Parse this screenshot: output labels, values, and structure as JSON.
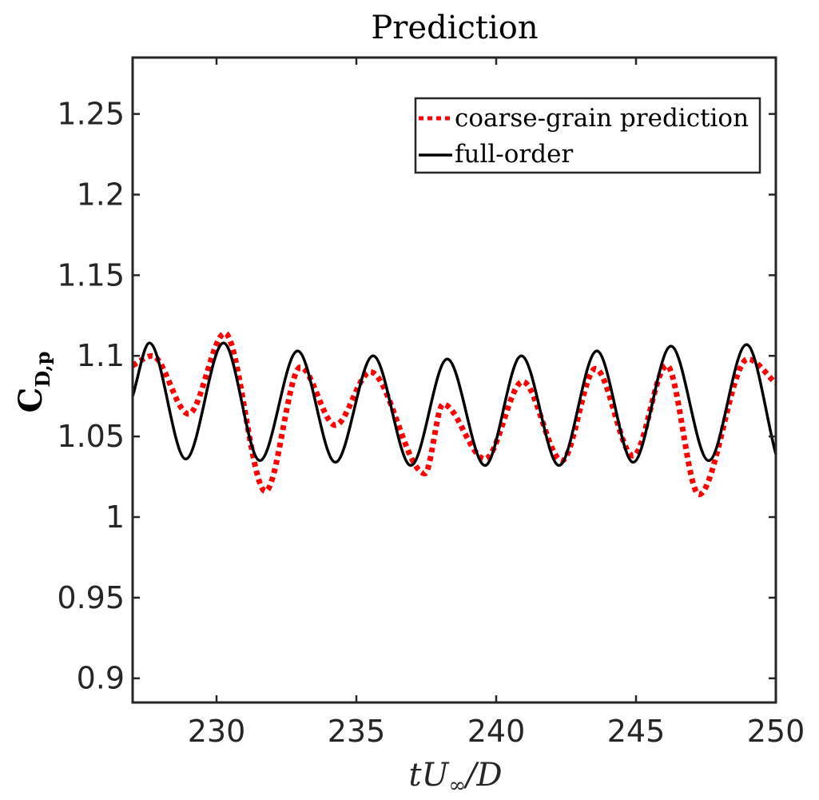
{
  "chart_data": {
    "type": "line",
    "title": "Prediction",
    "xlabel": "tU∞/D",
    "ylabel": "C",
    "ylabel_subscript": "D,p",
    "xlim": [
      227,
      250
    ],
    "ylim": [
      0.885,
      1.285
    ],
    "xticks": [
      230,
      235,
      240,
      245,
      250
    ],
    "yticks": [
      0.9,
      0.95,
      1,
      1.05,
      1.1,
      1.15,
      1.2,
      1.25
    ],
    "xtick_labels": [
      "230",
      "235",
      "240",
      "245",
      "250"
    ],
    "ytick_labels": [
      "0.9",
      "0.95",
      "1",
      "1.05",
      "1.1",
      "1.15",
      "1.2",
      "1.25"
    ],
    "grid": false,
    "legend_position": "top-right",
    "series": [
      {
        "name": "coarse-grain prediction",
        "color": "#ff0000",
        "style": "dotted",
        "x": [
          227.0,
          227.7,
          229.0,
          230.3,
          231.75,
          233.0,
          234.25,
          235.5,
          237.45,
          238.1,
          239.6,
          240.95,
          242.35,
          243.55,
          244.9,
          246.1,
          247.25,
          249.0,
          250.0
        ],
        "y": [
          1.094,
          1.1,
          1.064,
          1.114,
          1.016,
          1.093,
          1.057,
          1.09,
          1.027,
          1.07,
          1.036,
          1.084,
          1.035,
          1.092,
          1.038,
          1.094,
          1.014,
          1.098,
          1.083
        ]
      },
      {
        "name": "full-order",
        "color": "#000000",
        "style": "solid",
        "x": [
          227.0,
          227.6,
          228.9,
          230.25,
          231.55,
          232.9,
          234.25,
          235.6,
          236.95,
          238.25,
          239.6,
          240.9,
          242.25,
          243.6,
          244.9,
          246.25,
          247.6,
          248.95,
          250.0
        ],
        "y": [
          1.075,
          1.108,
          1.036,
          1.108,
          1.035,
          1.103,
          1.034,
          1.1,
          1.032,
          1.098,
          1.032,
          1.1,
          1.032,
          1.103,
          1.034,
          1.106,
          1.035,
          1.107,
          1.039
        ]
      }
    ]
  }
}
